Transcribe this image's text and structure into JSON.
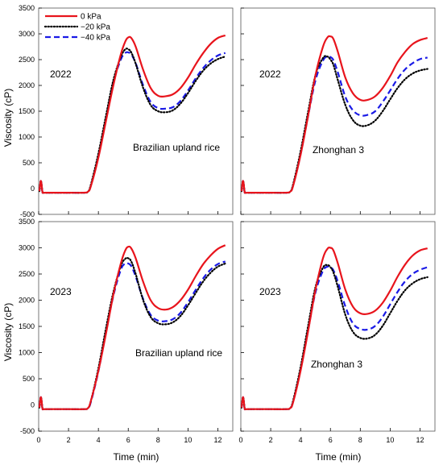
{
  "figure": {
    "ylabel": "Viscosity (cP)",
    "xlabel": "Time (min)"
  },
  "legend": [
    {
      "name": "0 kPa",
      "color": "#e8141c",
      "dash": "solid"
    },
    {
      "name": "−20 kPa",
      "color": "#000000",
      "dash": "dot"
    },
    {
      "name": "−40 kPa",
      "color": "#1a1ae6",
      "dash": "dash"
    }
  ],
  "chart_data": [
    {
      "type": "line",
      "year": "2022",
      "cultivar": "Brazilian upland rice",
      "xlim": [
        0,
        13
      ],
      "ylim": [
        -500,
        3500
      ],
      "xticks": [
        0,
        2,
        4,
        6,
        8,
        10,
        12
      ],
      "yticks": [
        -500,
        0,
        500,
        1000,
        1500,
        2000,
        2500,
        3000,
        3500
      ],
      "series": [
        {
          "name": "0 kPa",
          "x": [
            0.05,
            0.15,
            0.25,
            0.3,
            0.5,
            1,
            2,
            3,
            3.3,
            3.5,
            4,
            4.5,
            5,
            5.5,
            5.8,
            6,
            6.2,
            6.5,
            7,
            7.5,
            8,
            8.5,
            9,
            9.5,
            10,
            10.5,
            11,
            11.5,
            12,
            12.5
          ],
          "y": [
            -50,
            150,
            -60,
            -80,
            -80,
            -80,
            -80,
            -80,
            -60,
            50,
            600,
            1300,
            2000,
            2600,
            2850,
            2930,
            2920,
            2750,
            2300,
            1950,
            1800,
            1790,
            1830,
            1950,
            2150,
            2400,
            2620,
            2800,
            2920,
            2970
          ]
        },
        {
          "name": "−20 kPa",
          "x": [
            0.05,
            0.15,
            0.25,
            0.3,
            0.5,
            1,
            2,
            3,
            3.3,
            3.5,
            4,
            4.5,
            5,
            5.5,
            5.8,
            6,
            6.2,
            6.5,
            7,
            7.5,
            8,
            8.5,
            9,
            9.5,
            10,
            10.5,
            11,
            11.5,
            12,
            12.5
          ],
          "y": [
            -50,
            150,
            -60,
            -80,
            -80,
            -80,
            -80,
            -80,
            -60,
            80,
            680,
            1400,
            2100,
            2550,
            2700,
            2700,
            2640,
            2420,
            1950,
            1620,
            1500,
            1480,
            1520,
            1650,
            1850,
            2080,
            2280,
            2420,
            2510,
            2560
          ]
        },
        {
          "name": "−40 kPa",
          "x": [
            0.05,
            0.15,
            0.25,
            0.3,
            0.5,
            1,
            2,
            3,
            3.3,
            3.5,
            4,
            4.5,
            5,
            5.5,
            5.8,
            6,
            6.2,
            6.5,
            7,
            7.5,
            8,
            8.5,
            9,
            9.5,
            10,
            10.5,
            11,
            11.5,
            12,
            12.5
          ],
          "y": [
            -50,
            150,
            -60,
            -80,
            -80,
            -80,
            -80,
            -80,
            -60,
            60,
            620,
            1330,
            2050,
            2500,
            2630,
            2640,
            2600,
            2430,
            2000,
            1680,
            1560,
            1550,
            1580,
            1700,
            1900,
            2130,
            2330,
            2480,
            2580,
            2630
          ]
        }
      ]
    },
    {
      "type": "line",
      "year": "2022",
      "cultivar": "Zhonghan 3",
      "xlim": [
        0,
        13
      ],
      "ylim": [
        -500,
        3500
      ],
      "xticks": [
        0,
        2,
        4,
        6,
        8,
        10,
        12
      ],
      "yticks": [
        -500,
        0,
        500,
        1000,
        1500,
        2000,
        2500,
        3000,
        3500
      ],
      "series": [
        {
          "name": "0 kPa",
          "x": [
            0.05,
            0.15,
            0.25,
            0.3,
            0.5,
            1,
            2,
            3,
            3.3,
            3.5,
            4,
            4.5,
            5,
            5.5,
            5.8,
            6,
            6.2,
            6.5,
            7,
            7.5,
            8,
            8.5,
            9,
            9.5,
            10,
            10.5,
            11,
            11.5,
            12,
            12.5
          ],
          "y": [
            -50,
            150,
            -60,
            -80,
            -80,
            -80,
            -80,
            -80,
            -60,
            50,
            650,
            1400,
            2200,
            2750,
            2930,
            2950,
            2900,
            2650,
            2150,
            1850,
            1720,
            1720,
            1790,
            1950,
            2180,
            2450,
            2650,
            2800,
            2880,
            2920
          ]
        },
        {
          "name": "−20 kPa",
          "x": [
            0.05,
            0.15,
            0.25,
            0.3,
            0.5,
            1,
            2,
            3,
            3.3,
            3.5,
            4,
            4.5,
            5,
            5.5,
            5.8,
            6,
            6.2,
            6.5,
            7,
            7.5,
            8,
            8.5,
            9,
            9.5,
            10,
            10.5,
            11,
            11.5,
            12,
            12.5
          ],
          "y": [
            -50,
            150,
            -60,
            -80,
            -80,
            -80,
            -80,
            -80,
            -60,
            80,
            720,
            1480,
            2200,
            2530,
            2560,
            2500,
            2400,
            2100,
            1620,
            1330,
            1220,
            1230,
            1320,
            1500,
            1730,
            1950,
            2120,
            2230,
            2290,
            2320
          ]
        },
        {
          "name": "−40 kPa",
          "x": [
            0.05,
            0.15,
            0.25,
            0.3,
            0.5,
            1,
            2,
            3,
            3.3,
            3.5,
            4,
            4.5,
            5,
            5.5,
            5.8,
            6,
            6.2,
            6.5,
            7,
            7.5,
            8,
            8.5,
            9,
            9.5,
            10,
            10.5,
            11,
            11.5,
            12,
            12.5
          ],
          "y": [
            -50,
            150,
            -60,
            -80,
            -80,
            -80,
            -80,
            -80,
            -60,
            60,
            660,
            1400,
            2100,
            2480,
            2560,
            2550,
            2490,
            2250,
            1780,
            1520,
            1420,
            1430,
            1500,
            1680,
            1900,
            2130,
            2310,
            2430,
            2510,
            2540
          ]
        }
      ]
    },
    {
      "type": "line",
      "year": "2023",
      "cultivar": "Brazilian upland rice",
      "xlim": [
        0,
        13
      ],
      "ylim": [
        -500,
        3500
      ],
      "xticks": [
        0,
        2,
        4,
        6,
        8,
        10,
        12
      ],
      "yticks": [
        -500,
        0,
        500,
        1000,
        1500,
        2000,
        2500,
        3000,
        3500
      ],
      "series": [
        {
          "name": "0 kPa",
          "x": [
            0.05,
            0.15,
            0.25,
            0.3,
            0.5,
            1,
            2,
            3,
            3.3,
            3.5,
            4,
            4.5,
            5,
            5.5,
            5.8,
            6,
            6.2,
            6.5,
            7,
            7.5,
            8,
            8.5,
            9,
            9.5,
            10,
            10.5,
            11,
            11.5,
            12,
            12.5
          ],
          "y": [
            -50,
            150,
            -60,
            -80,
            -80,
            -80,
            -80,
            -80,
            -60,
            80,
            650,
            1350,
            2100,
            2700,
            2950,
            3020,
            2990,
            2800,
            2350,
            2000,
            1850,
            1820,
            1870,
            2000,
            2200,
            2450,
            2680,
            2850,
            2980,
            3050
          ]
        },
        {
          "name": "−20 kPa",
          "x": [
            0.05,
            0.15,
            0.25,
            0.3,
            0.5,
            1,
            2,
            3,
            3.3,
            3.5,
            4,
            4.5,
            5,
            5.5,
            5.8,
            6,
            6.2,
            6.5,
            7,
            7.5,
            8,
            8.5,
            9,
            9.5,
            10,
            10.5,
            11,
            11.5,
            12,
            12.5
          ],
          "y": [
            -50,
            150,
            -60,
            -80,
            -80,
            -80,
            -80,
            -80,
            -60,
            80,
            700,
            1450,
            2150,
            2650,
            2790,
            2800,
            2740,
            2500,
            2000,
            1680,
            1560,
            1540,
            1580,
            1700,
            1900,
            2130,
            2350,
            2520,
            2640,
            2700
          ]
        },
        {
          "name": "−40 kPa",
          "x": [
            0.05,
            0.15,
            0.25,
            0.3,
            0.5,
            1,
            2,
            3,
            3.3,
            3.5,
            4,
            4.5,
            5,
            5.5,
            5.8,
            6,
            6.2,
            6.5,
            7,
            7.5,
            8,
            8.5,
            9,
            9.5,
            10,
            10.5,
            11,
            11.5,
            12,
            12.5
          ],
          "y": [
            -50,
            150,
            -60,
            -80,
            -80,
            -80,
            -80,
            -80,
            -60,
            60,
            640,
            1380,
            2080,
            2580,
            2700,
            2700,
            2650,
            2450,
            2020,
            1720,
            1610,
            1600,
            1640,
            1760,
            1960,
            2190,
            2410,
            2580,
            2690,
            2740
          ]
        }
      ]
    },
    {
      "type": "line",
      "year": "2023",
      "cultivar": "Zhonghan 3",
      "xlim": [
        0,
        13
      ],
      "ylim": [
        -500,
        3500
      ],
      "xticks": [
        0,
        2,
        4,
        6,
        8,
        10,
        12
      ],
      "yticks": [
        -500,
        0,
        500,
        1000,
        1500,
        2000,
        2500,
        3000,
        3500
      ],
      "series": [
        {
          "name": "0 kPa",
          "x": [
            0.05,
            0.15,
            0.25,
            0.3,
            0.5,
            1,
            2,
            3,
            3.3,
            3.5,
            4,
            4.5,
            5,
            5.5,
            5.8,
            6,
            6.2,
            6.5,
            7,
            7.5,
            8,
            8.5,
            9,
            9.5,
            10,
            10.5,
            11,
            11.5,
            12,
            12.5
          ],
          "y": [
            -50,
            150,
            -60,
            -80,
            -80,
            -80,
            -80,
            -80,
            -60,
            50,
            650,
            1400,
            2200,
            2800,
            2980,
            3000,
            2950,
            2700,
            2200,
            1880,
            1750,
            1740,
            1800,
            1950,
            2180,
            2450,
            2680,
            2850,
            2950,
            2990
          ]
        },
        {
          "name": "−20 kPa",
          "x": [
            0.05,
            0.15,
            0.25,
            0.3,
            0.5,
            1,
            2,
            3,
            3.3,
            3.5,
            4,
            4.5,
            5,
            5.5,
            5.8,
            6,
            6.2,
            6.5,
            7,
            7.5,
            8,
            8.5,
            9,
            9.5,
            10,
            10.5,
            11,
            11.5,
            12,
            12.5
          ],
          "y": [
            -50,
            150,
            -60,
            -80,
            -80,
            -80,
            -80,
            -80,
            -60,
            80,
            720,
            1500,
            2250,
            2620,
            2670,
            2630,
            2530,
            2250,
            1720,
            1400,
            1280,
            1270,
            1340,
            1510,
            1750,
            1990,
            2190,
            2320,
            2400,
            2440
          ]
        },
        {
          "name": "−40 kPa",
          "x": [
            0.05,
            0.15,
            0.25,
            0.3,
            0.5,
            1,
            2,
            3,
            3.3,
            3.5,
            4,
            4.5,
            5,
            5.5,
            5.8,
            6,
            6.2,
            6.5,
            7,
            7.5,
            8,
            8.5,
            9,
            9.5,
            10,
            10.5,
            11,
            11.5,
            12,
            12.5
          ],
          "y": [
            -50,
            150,
            -60,
            -80,
            -80,
            -80,
            -80,
            -80,
            -60,
            60,
            670,
            1420,
            2150,
            2560,
            2640,
            2630,
            2570,
            2350,
            1880,
            1560,
            1450,
            1440,
            1510,
            1680,
            1920,
            2160,
            2360,
            2500,
            2580,
            2630
          ]
        }
      ]
    }
  ]
}
